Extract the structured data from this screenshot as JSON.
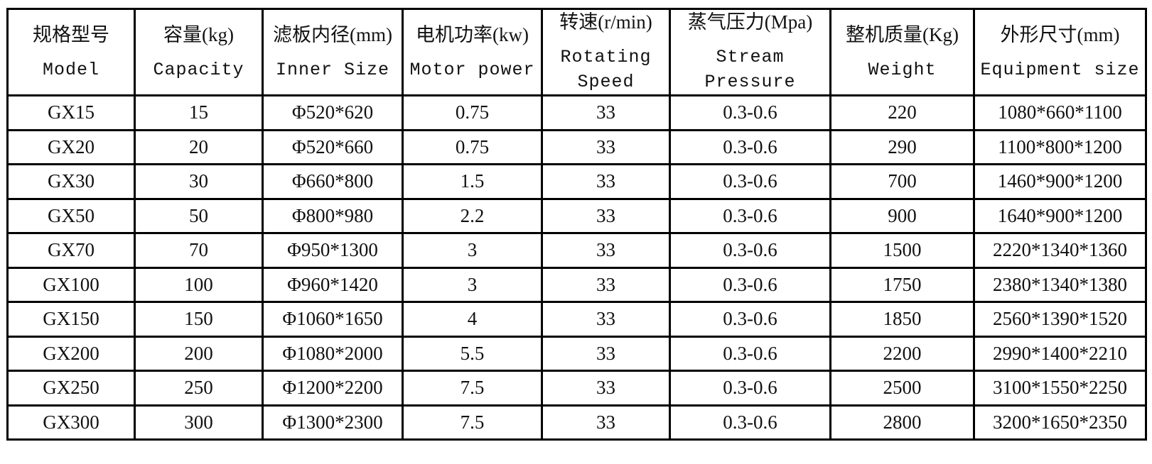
{
  "table": {
    "header": [
      {
        "zh": "规格型号",
        "en": "Model"
      },
      {
        "zh": "容量(kg)",
        "en": "Capacity"
      },
      {
        "zh": "滤板内径(mm)",
        "en": "Inner Size"
      },
      {
        "zh": "电机功率(kw)",
        "en": "Motor power"
      },
      {
        "zh": "转速(r/min)",
        "en": "Rotating Speed"
      },
      {
        "zh": "蒸气压力(Mpa)",
        "en": "Stream Pressure"
      },
      {
        "zh": "整机质量(Kg)",
        "en": "Weight"
      },
      {
        "zh": "外形尺寸(mm)",
        "en": "Equipment size"
      }
    ],
    "rows": [
      [
        "GX15",
        "15",
        "Φ520*620",
        "0.75",
        "33",
        "0.3-0.6",
        "220",
        "1080*660*1100"
      ],
      [
        "GX20",
        "20",
        "Φ520*660",
        "0.75",
        "33",
        "0.3-0.6",
        "290",
        "1100*800*1200"
      ],
      [
        "GX30",
        "30",
        "Φ660*800",
        "1.5",
        "33",
        "0.3-0.6",
        "700",
        "1460*900*1200"
      ],
      [
        "GX50",
        "50",
        "Φ800*980",
        "2.2",
        "33",
        "0.3-0.6",
        "900",
        "1640*900*1200"
      ],
      [
        "GX70",
        "70",
        "Φ950*1300",
        "3",
        "33",
        "0.3-0.6",
        "1500",
        "2220*1340*1360"
      ],
      [
        "GX100",
        "100",
        "Φ960*1420",
        "3",
        "33",
        "0.3-0.6",
        "1750",
        "2380*1340*1380"
      ],
      [
        "GX150",
        "150",
        "Φ1060*1650",
        "4",
        "33",
        "0.3-0.6",
        "1850",
        "2560*1390*1520"
      ],
      [
        "GX200",
        "200",
        "Φ1080*2000",
        "5.5",
        "33",
        "0.3-0.6",
        "2200",
        "2990*1400*2210"
      ],
      [
        "GX250",
        "250",
        "Φ1200*2200",
        "7.5",
        "33",
        "0.3-0.6",
        "2500",
        "3100*1550*2250"
      ],
      [
        "GX300",
        "300",
        "Φ1300*2300",
        "7.5",
        "33",
        "0.3-0.6",
        "2800",
        "3200*1650*2350"
      ]
    ]
  }
}
